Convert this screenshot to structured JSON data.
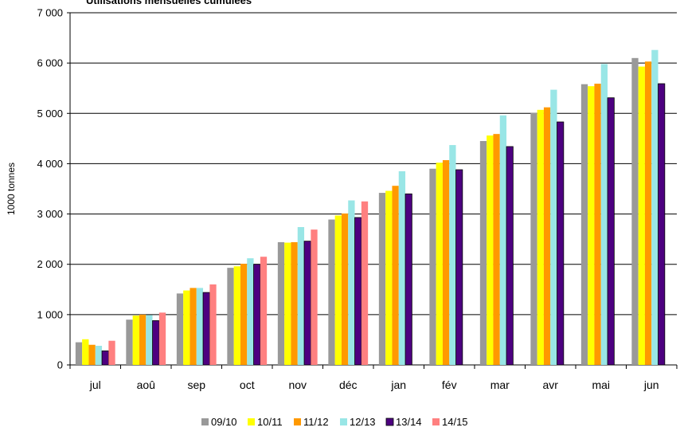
{
  "chart_data": {
    "type": "bar",
    "title": "Utilisations mensuelles cumulées",
    "xlabel": "",
    "ylabel": "1000 tonnes",
    "ylim": [
      0,
      7000
    ],
    "yticks": [
      0,
      1000,
      2000,
      3000,
      4000,
      5000,
      6000,
      7000
    ],
    "ytick_labels": [
      "0",
      "1 000",
      "2 000",
      "3 000",
      "4 000",
      "5 000",
      "6 000",
      "7 000"
    ],
    "grid": "horizontal",
    "legend_position": "bottom",
    "categories": [
      "jul",
      "aoû",
      "sep",
      "oct",
      "nov",
      "déc",
      "jan",
      "fév",
      "mar",
      "avr",
      "mai",
      "jun"
    ],
    "series": [
      {
        "name": "09/10",
        "color": "#999999",
        "values": [
          450,
          900,
          1420,
          1930,
          2440,
          2890,
          3420,
          3900,
          4450,
          5010,
          5580,
          6100
        ]
      },
      {
        "name": "10/11",
        "color": "#FFFF00",
        "values": [
          510,
          980,
          1480,
          1960,
          2430,
          2970,
          3460,
          4020,
          4560,
          5070,
          5540,
          5930
        ]
      },
      {
        "name": "11/12",
        "color": "#FF9900",
        "values": [
          400,
          1000,
          1530,
          2010,
          2440,
          3010,
          3560,
          4070,
          4590,
          5120,
          5590,
          6030
        ]
      },
      {
        "name": "12/13",
        "color": "#99E6E6",
        "values": [
          380,
          990,
          1530,
          2120,
          2740,
          3270,
          3850,
          4370,
          4960,
          5470,
          5980,
          6260
        ]
      },
      {
        "name": "13/14",
        "color": "#4D0080",
        "values": [
          280,
          880,
          1440,
          2000,
          2460,
          2930,
          3400,
          3880,
          4340,
          4830,
          5310,
          5590
        ]
      },
      {
        "name": "14/15",
        "color": "#FF8080",
        "values": [
          480,
          1040,
          1600,
          2150,
          2690,
          3250,
          null,
          null,
          null,
          null,
          null,
          null
        ]
      }
    ]
  }
}
